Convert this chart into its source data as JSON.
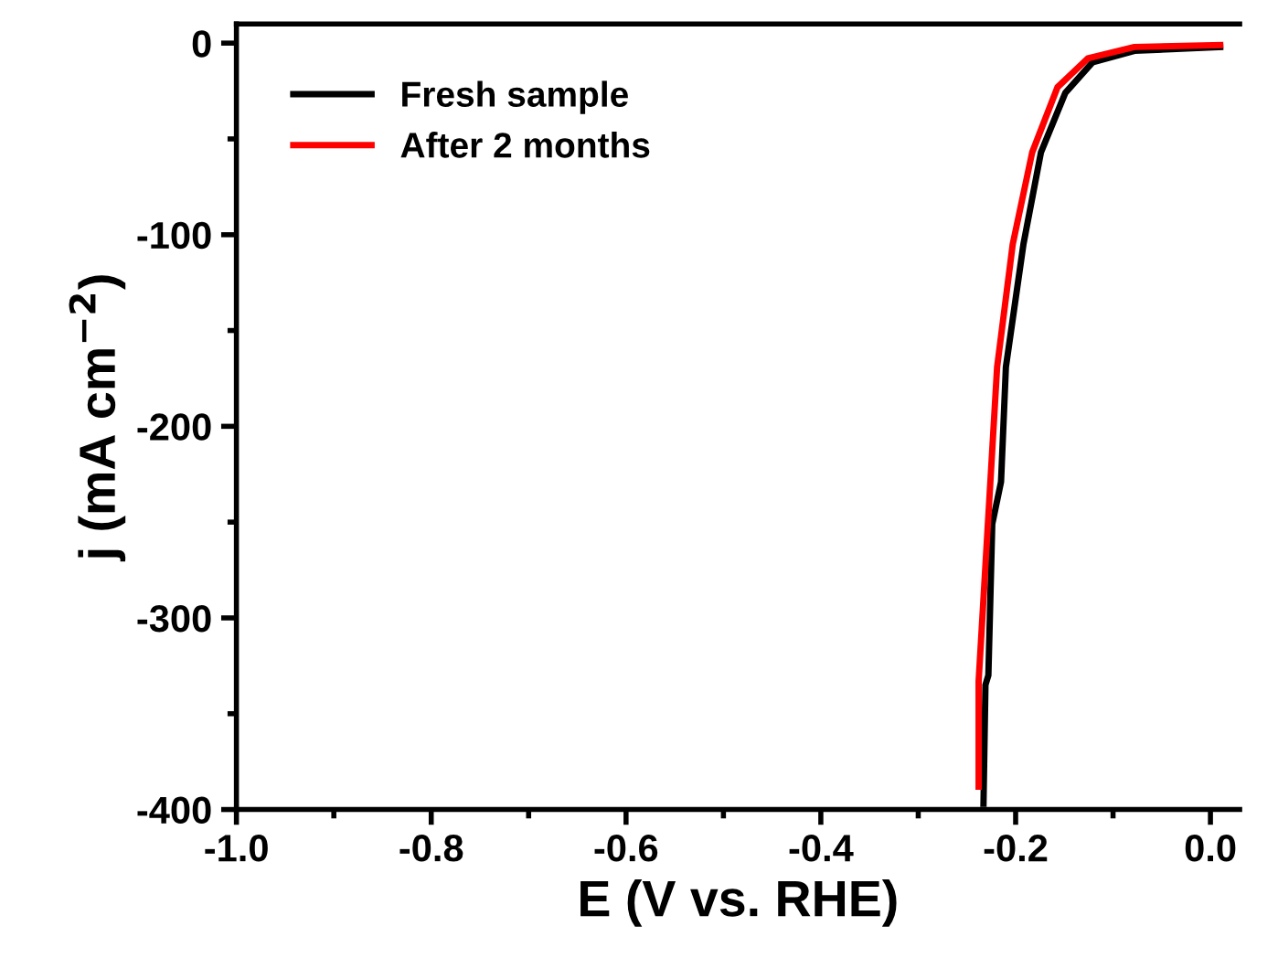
{
  "chart_data": {
    "type": "line",
    "xlabel": "E (V vs. RHE)",
    "ylabel": "j (mA cm$^{−2}$)",
    "xlim": [
      -1.0,
      0.03
    ],
    "ylim": [
      -400,
      10
    ],
    "xticks": [
      {
        "value": -1.0,
        "label": "-1.0"
      },
      {
        "value": -0.8,
        "label": "-0.8"
      },
      {
        "value": -0.6,
        "label": "-0.6"
      },
      {
        "value": -0.4,
        "label": "-0.4"
      },
      {
        "value": -0.2,
        "label": "-0.2"
      },
      {
        "value": 0.0,
        "label": "0.0"
      }
    ],
    "yticks": [
      -400,
      -300,
      -200,
      -100,
      0
    ],
    "grid": false,
    "legend": "top left",
    "marker": "none",
    "line_style": "solid",
    "series": [
      {
        "name": "Fresh sample",
        "color": "#000000",
        "x": [
          -0.233,
          -0.231,
          -0.228,
          -0.224,
          -0.215,
          -0.21,
          -0.192,
          -0.174,
          -0.149,
          -0.121,
          -0.078,
          0.01
        ],
        "values": [
          -397,
          -335,
          -330,
          -251,
          -229,
          -169,
          -105,
          -57,
          -26,
          -10,
          -4,
          -2
        ]
      },
      {
        "name": "After 2 months",
        "color": "#ff0000",
        "x": [
          -0.238,
          -0.238,
          -0.23,
          -0.219,
          -0.203,
          -0.183,
          -0.157,
          -0.126,
          -0.078,
          0.01
        ],
        "values": [
          -388,
          -333,
          -264,
          -169,
          -105,
          -57,
          -23,
          -8,
          -2,
          -1
        ]
      }
    ]
  }
}
